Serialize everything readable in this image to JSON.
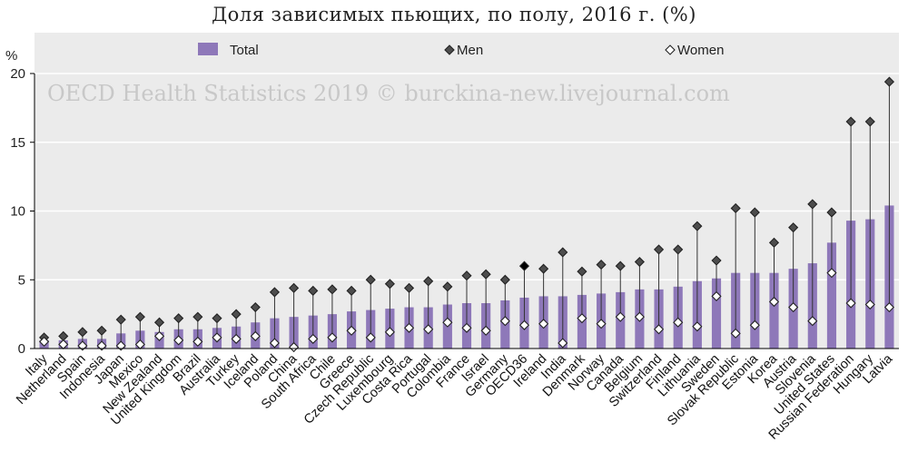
{
  "chart_data": {
    "type": "bar",
    "title": "Доля зависимых пьющих, по полу, 2016 г. (%)",
    "ylabel": "%",
    "ylim": [
      0,
      20
    ],
    "yticks": [
      0,
      5,
      10,
      15,
      20
    ],
    "grid": true,
    "legend_position": "top",
    "watermark": "OECD Health Statistics 2019 © burckina-new.livejournal.com",
    "categories": [
      "Italy",
      "Netherland",
      "Spain",
      "Indonesia",
      "Japan",
      "Mexico",
      "New Zealand",
      "United Kingdom",
      "Brazil",
      "Australia",
      "Turkey",
      "Iceland",
      "Poland",
      "China",
      "South Africa",
      "Chile",
      "Greece",
      "Czech Republic",
      "Luxembourg",
      "Costa Rica",
      "Portugal",
      "Colombia",
      "France",
      "Israel",
      "Germany",
      "OECD36",
      "Ireland",
      "India",
      "Denmark",
      "Norway",
      "Canada",
      "Belgium",
      "Switzerland",
      "Finland",
      "Lithuania",
      "Sweden",
      "Slovak Republic",
      "Estonia",
      "Korea",
      "Austria",
      "Slovenia",
      "United States",
      "Russian Federation",
      "Hungary",
      "Latvia"
    ],
    "highlight": {
      "category": "Russian Federation",
      "color": "#e8000b"
    },
    "average_category": "OECD36",
    "series": [
      {
        "name": "Total",
        "marker": "bar",
        "color": "#8e78b9",
        "values": [
          0.6,
          0.6,
          0.7,
          0.7,
          1.1,
          1.3,
          1.2,
          1.4,
          1.4,
          1.5,
          1.6,
          1.9,
          2.2,
          2.3,
          2.4,
          2.5,
          2.7,
          2.8,
          2.9,
          3.0,
          3.0,
          3.2,
          3.3,
          3.3,
          3.5,
          3.7,
          3.8,
          3.8,
          3.9,
          4.0,
          4.1,
          4.3,
          4.3,
          4.5,
          4.9,
          5.1,
          5.5,
          5.5,
          5.5,
          5.8,
          6.2,
          7.7,
          9.3,
          9.4,
          10.4
        ]
      },
      {
        "name": "Men",
        "marker": "diamond-filled",
        "color": "#4d4d4d",
        "values": [
          0.8,
          0.9,
          1.2,
          1.3,
          2.1,
          2.3,
          1.9,
          2.2,
          2.3,
          2.2,
          2.5,
          3.0,
          4.1,
          4.4,
          4.2,
          4.3,
          4.2,
          5.0,
          4.7,
          4.4,
          4.9,
          4.5,
          5.3,
          5.4,
          5.0,
          6.0,
          5.8,
          7.0,
          5.6,
          6.1,
          6.0,
          6.3,
          7.2,
          7.2,
          8.9,
          6.4,
          10.2,
          9.9,
          7.7,
          8.8,
          10.5,
          9.9,
          16.5,
          16.5,
          19.4
        ]
      },
      {
        "name": "Women",
        "marker": "diamond-open",
        "color": "#ffffff",
        "values": [
          0.5,
          0.3,
          0.2,
          0.2,
          0.2,
          0.3,
          0.9,
          0.6,
          0.5,
          0.8,
          0.7,
          0.9,
          0.4,
          0.1,
          0.7,
          0.8,
          1.3,
          0.8,
          1.2,
          1.5,
          1.4,
          1.9,
          1.5,
          1.3,
          2.0,
          1.7,
          1.8,
          0.4,
          2.2,
          1.8,
          2.3,
          2.3,
          1.4,
          1.9,
          1.6,
          3.8,
          1.1,
          1.7,
          3.4,
          3.0,
          2.0,
          5.5,
          3.3,
          3.2,
          3.0
        ]
      }
    ]
  },
  "colors": {
    "plot_background": "#ebebeb",
    "grid": "#ffffff",
    "bar": "#8e78b9",
    "highlight_label": "#e8000b",
    "average_men_marker": "#000000"
  }
}
